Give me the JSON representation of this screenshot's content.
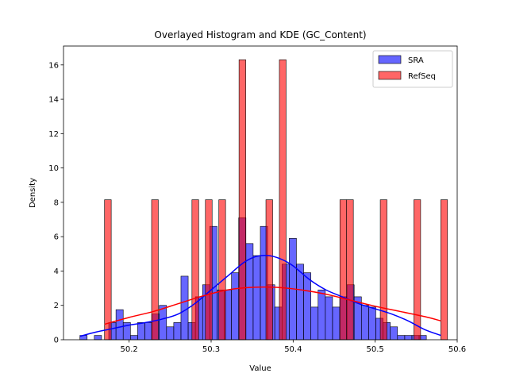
{
  "chart_data": {
    "type": "histogram",
    "title": "Overlayed Histogram and KDE (GC_Content)",
    "xlabel": "Value",
    "ylabel": "Density",
    "xlim": [
      50.12,
      50.6
    ],
    "ylim": [
      0,
      17.1
    ],
    "xticks": [
      50.2,
      50.3,
      50.4,
      50.5,
      50.6
    ],
    "xtick_labels": [
      "50.2",
      "50.3",
      "50.4",
      "50.5",
      "50.6"
    ],
    "yticks": [
      0,
      2,
      4,
      6,
      8,
      10,
      12,
      14,
      16
    ],
    "ytick_labels": [
      "0",
      "2",
      "4",
      "6",
      "8",
      "10",
      "12",
      "14",
      "16"
    ],
    "grid": false,
    "legend": {
      "position": "top-right",
      "entries": [
        "SRA",
        "RefSeq"
      ]
    },
    "series": [
      {
        "name": "SRA",
        "color": "#0000ff",
        "bin_start": 50.14,
        "bin_width": 0.0088,
        "values": [
          0.25,
          0,
          0.25,
          0,
          1.0,
          1.75,
          1.0,
          0.25,
          1.0,
          1.0,
          1.5,
          2.0,
          0.75,
          1.0,
          3.7,
          1.0,
          2.5,
          3.2,
          6.6,
          2.9,
          2.9,
          3.9,
          7.1,
          5.6,
          4.9,
          6.6,
          3.2,
          1.9,
          4.4,
          5.9,
          4.4,
          3.9,
          1.9,
          2.9,
          2.5,
          1.9,
          2.5,
          3.2,
          2.5,
          2.0,
          1.9,
          1.25,
          1.0,
          0.75,
          0.25,
          0.25,
          0.25,
          0.25
        ],
        "kde": {
          "x": [
            50.14,
            50.16,
            50.18,
            50.2,
            50.22,
            50.24,
            50.26,
            50.28,
            50.3,
            50.32,
            50.34,
            50.355,
            50.37,
            50.385,
            50.4,
            50.42,
            50.44,
            50.46,
            50.48,
            50.5,
            50.52,
            50.54,
            50.56,
            50.58
          ],
          "y": [
            0.2,
            0.45,
            0.65,
            0.85,
            1.0,
            1.2,
            1.5,
            2.1,
            2.9,
            3.7,
            4.5,
            4.85,
            4.9,
            4.7,
            4.3,
            3.5,
            2.9,
            2.5,
            2.1,
            1.8,
            1.5,
            1.1,
            0.6,
            0.25
          ]
        }
      },
      {
        "name": "RefSeq",
        "color": "#ff0000",
        "bin_start": 50.17,
        "bin_width": 0.0082,
        "values": [
          8.15,
          0,
          0,
          0,
          0,
          0,
          0,
          8.15,
          0,
          0,
          0,
          0,
          0,
          8.15,
          0,
          8.15,
          0,
          8.15,
          0,
          0,
          16.3,
          0,
          0,
          0,
          8.15,
          0,
          16.3,
          0,
          0,
          0,
          0,
          0,
          0,
          0,
          0,
          8.15,
          8.15,
          0,
          0,
          0,
          0,
          8.15,
          0,
          0,
          0,
          0,
          8.15,
          0,
          0,
          0,
          8.15
        ],
        "kde": {
          "x": [
            50.17,
            50.2,
            50.23,
            50.26,
            50.29,
            50.32,
            50.35,
            50.38,
            50.41,
            50.44,
            50.47,
            50.5,
            50.53,
            50.56,
            50.58
          ],
          "y": [
            0.9,
            1.3,
            1.65,
            2.1,
            2.55,
            2.9,
            3.05,
            3.05,
            2.9,
            2.65,
            2.3,
            1.95,
            1.65,
            1.35,
            1.1
          ]
        }
      }
    ]
  }
}
